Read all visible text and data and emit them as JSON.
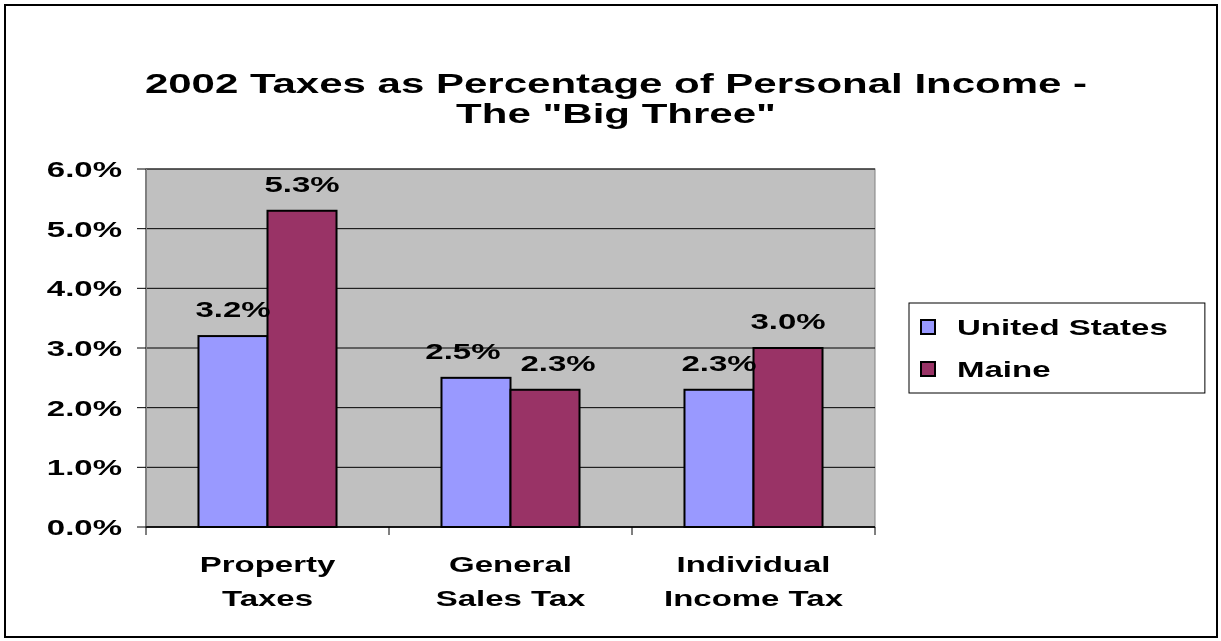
{
  "chart_data": {
    "type": "bar",
    "title": "2002 Taxes as Percentage of Personal Income - The \"Big Three\"",
    "categories": [
      "Property Taxes",
      "General Sales Tax",
      "Individual Income Tax"
    ],
    "series": [
      {
        "name": "United States",
        "color": "#9999ff",
        "values": [
          3.2,
          2.5,
          2.3
        ],
        "value_labels": [
          "3.2%",
          "2.5%",
          "2.3%"
        ]
      },
      {
        "name": "Maine",
        "color": "#993366",
        "values": [
          5.3,
          2.3,
          3.0
        ],
        "value_labels": [
          "5.3%",
          "2.3%",
          "3.0%"
        ]
      }
    ],
    "ylim": [
      0,
      6
    ],
    "yticks": [
      {
        "value": 0,
        "label": "0.0%"
      },
      {
        "value": 1,
        "label": "1.0%"
      },
      {
        "value": 2,
        "label": "2.0%"
      },
      {
        "value": 3,
        "label": "3.0%"
      },
      {
        "value": 4,
        "label": "4.0%"
      },
      {
        "value": 5,
        "label": "5.0%"
      },
      {
        "value": 6,
        "label": "6.0%"
      }
    ],
    "grid": "y",
    "legend": "right"
  }
}
